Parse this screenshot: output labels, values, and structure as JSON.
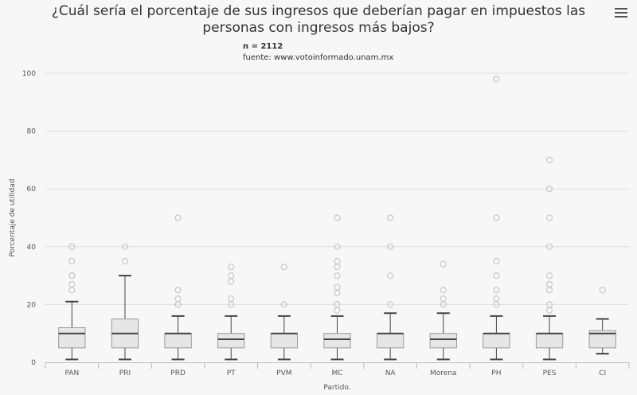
{
  "title": "¿Cuál sería el porcentaje de sus ingresos que deberían pagar en impuestos las personas con ingresos más bajos?",
  "subtitle": {
    "n": "n = 2112",
    "source": "fuente: www.votoinformado.unam.mx"
  },
  "menu": {
    "icon": "hamburger-menu-icon"
  },
  "chart_data": {
    "type": "boxplot",
    "xlabel": "Partido.",
    "ylabel": "Porcentaje de utilidad",
    "ylim": [
      0,
      100
    ],
    "yticks": [
      0,
      20,
      40,
      60,
      80,
      100
    ],
    "grid": true,
    "colors": {
      "box_fill": "#e6e6e6",
      "box_stroke": "#9a9a9a",
      "median": "#444444",
      "whisker": "#444444",
      "outlier": "#c8c8c8",
      "grid": "#dddddd"
    },
    "categories": [
      "PAN",
      "PRI",
      "PRD",
      "PT",
      "PVM",
      "MC",
      "NA",
      "Morena",
      "PH",
      "PES",
      "CI"
    ],
    "boxes": [
      {
        "low": 1,
        "q1": 5,
        "median": 10,
        "q3": 12,
        "high": 21,
        "outliers": [
          25,
          27,
          30,
          30,
          35,
          40
        ]
      },
      {
        "low": 1,
        "q1": 5,
        "median": 10,
        "q3": 15,
        "high": 30,
        "outliers": [
          35,
          40
        ]
      },
      {
        "low": 1,
        "q1": 5,
        "median": 10,
        "q3": 10,
        "high": 16,
        "outliers": [
          20,
          20,
          22,
          25,
          50
        ]
      },
      {
        "low": 1,
        "q1": 5,
        "median": 8,
        "q3": 10,
        "high": 16,
        "outliers": [
          20,
          22,
          28,
          30,
          33
        ]
      },
      {
        "low": 1,
        "q1": 5,
        "median": 10,
        "q3": 10,
        "high": 16,
        "outliers": [
          20,
          33
        ]
      },
      {
        "low": 1,
        "q1": 5,
        "median": 8,
        "q3": 10,
        "high": 16,
        "outliers": [
          18,
          20,
          24,
          26,
          30,
          33,
          35,
          40,
          50
        ]
      },
      {
        "low": 1,
        "q1": 5,
        "median": 10,
        "q3": 10,
        "high": 17,
        "outliers": [
          20,
          30,
          40,
          50
        ]
      },
      {
        "low": 1,
        "q1": 5,
        "median": 8,
        "q3": 10,
        "high": 17,
        "outliers": [
          20,
          22,
          25,
          34
        ]
      },
      {
        "low": 1,
        "q1": 5,
        "median": 10,
        "q3": 10,
        "high": 16,
        "outliers": [
          20,
          22,
          25,
          30,
          35,
          50,
          98
        ]
      },
      {
        "low": 1,
        "q1": 5,
        "median": 10,
        "q3": 10,
        "high": 16,
        "outliers": [
          18,
          20,
          25,
          27,
          30,
          40,
          50,
          60,
          70
        ]
      },
      {
        "low": 3,
        "q1": 5,
        "median": 10,
        "q3": 11,
        "high": 15,
        "outliers": [
          25
        ]
      }
    ]
  }
}
